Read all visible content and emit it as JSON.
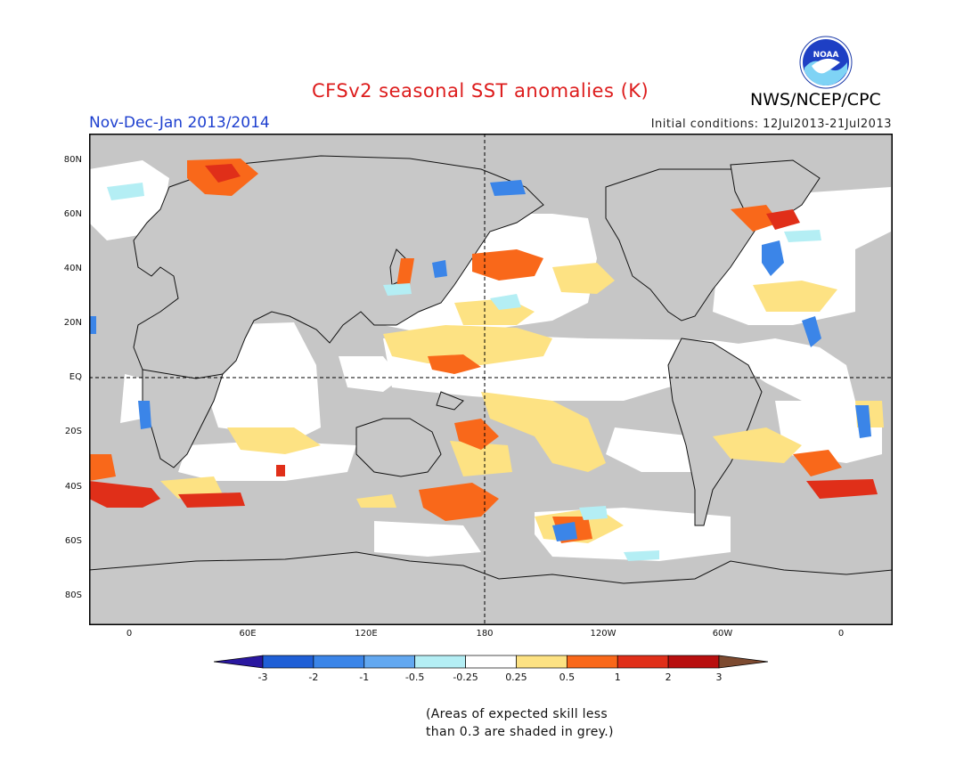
{
  "title": "CFSv2 seasonal SST anomalies (K)",
  "subtitle": "Nov-Dec-Jan 2013/2014",
  "initial_conditions": "Initial conditions: 12Jul2013-21Jul2013",
  "agency": "NWS/NCEP/CPC",
  "logo_text": "NOAA",
  "lat_labels": [
    "80N",
    "60N",
    "40N",
    "20N",
    "EQ",
    "20S",
    "40S",
    "60S",
    "80S"
  ],
  "lon_labels": [
    "0",
    "60E",
    "120E",
    "180",
    "120W",
    "60W",
    "0"
  ],
  "colorbar": {
    "ticks": [
      "-3",
      "-2",
      "-1",
      "-0.5",
      "-0.25",
      "0.25",
      "0.5",
      "1",
      "2",
      "3"
    ],
    "colors": [
      "#2a17a0",
      "#1f5fd6",
      "#3b85e8",
      "#63a8f0",
      "#b4eef4",
      "#ffffff",
      "#fde283",
      "#f9681a",
      "#e02f19",
      "#b80f0f",
      "#7d4a30"
    ]
  },
  "skill_note": [
    "(Areas of expected skill less",
    "than 0.3 are shaded in grey.)"
  ],
  "colors": {
    "land": "#c8c8c8",
    "noskill": "#c0c0c0",
    "ocean": "#ffffff"
  }
}
